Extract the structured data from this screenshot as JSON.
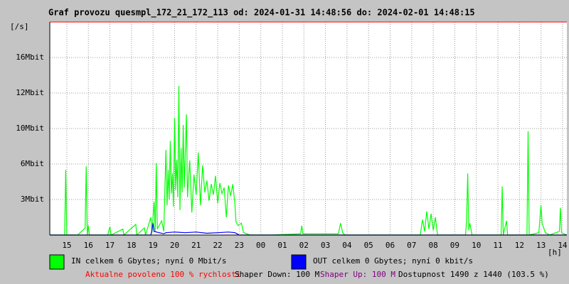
{
  "chart_data": {
    "type": "line",
    "title": "Graf provozu quesmpl_172_21_172_113 od: 2024-01-31 14:48:56 do: 2024-02-01 14:48:15",
    "ylabel": "[/s]",
    "xlabel": "[h]",
    "yscale": "equal-step",
    "ylim": [
      0,
      20
    ],
    "yticks": [
      {
        "value": 3,
        "label": "3Mbit"
      },
      {
        "value": 6,
        "label": "6Mbit"
      },
      {
        "value": 10,
        "label": "10Mbit"
      },
      {
        "value": 12,
        "label": "12Mbit"
      },
      {
        "value": 16,
        "label": "16Mbit"
      }
    ],
    "xlim": [
      14.21,
      38.2
    ],
    "xticks": [
      {
        "value": 15,
        "label": "15"
      },
      {
        "value": 16,
        "label": "16"
      },
      {
        "value": 17,
        "label": "17"
      },
      {
        "value": 18,
        "label": "18"
      },
      {
        "value": 19,
        "label": "19"
      },
      {
        "value": 20,
        "label": "20"
      },
      {
        "value": 21,
        "label": "21"
      },
      {
        "value": 22,
        "label": "22"
      },
      {
        "value": 23,
        "label": "23"
      },
      {
        "value": 24,
        "label": "00"
      },
      {
        "value": 25,
        "label": "01"
      },
      {
        "value": 26,
        "label": "02"
      },
      {
        "value": 27,
        "label": "03"
      },
      {
        "value": 28,
        "label": "04"
      },
      {
        "value": 29,
        "label": "05"
      },
      {
        "value": 30,
        "label": "06"
      },
      {
        "value": 31,
        "label": "07"
      },
      {
        "value": 32,
        "label": "08"
      },
      {
        "value": 33,
        "label": "09"
      },
      {
        "value": 34,
        "label": "10"
      },
      {
        "value": 35,
        "label": "11"
      },
      {
        "value": 36,
        "label": "12"
      },
      {
        "value": 37,
        "label": "13"
      },
      {
        "value": 38,
        "label": "14"
      }
    ],
    "grid": true,
    "series": [
      {
        "name": "IN celkem 6 Gbytes; nyní 0 Mbit/s",
        "color": "#00ff00",
        "x": [
          14.21,
          14.9,
          14.95,
          15.0,
          15.5,
          15.85,
          15.9,
          15.95,
          16.0,
          16.05,
          16.9,
          17.0,
          17.05,
          17.6,
          17.65,
          18.2,
          18.25,
          18.6,
          18.65,
          18.9,
          18.95,
          19.05,
          19.1,
          19.15,
          19.2,
          19.4,
          19.5,
          19.6,
          19.65,
          19.7,
          19.75,
          19.8,
          19.85,
          19.9,
          19.95,
          20.0,
          20.05,
          20.1,
          20.15,
          20.2,
          20.25,
          20.3,
          20.35,
          20.4,
          20.45,
          20.55,
          20.6,
          20.7,
          20.8,
          20.9,
          21.0,
          21.1,
          21.2,
          21.3,
          21.4,
          21.5,
          21.6,
          21.7,
          21.8,
          21.9,
          22.0,
          22.1,
          22.2,
          22.3,
          22.4,
          22.5,
          22.6,
          22.7,
          22.8,
          22.85,
          22.95,
          23.1,
          23.2,
          23.5,
          24.5,
          25.85,
          25.9,
          25.95,
          27.6,
          27.7,
          27.8,
          27.9,
          31.4,
          31.5,
          31.6,
          31.7,
          31.8,
          31.9,
          32.0,
          32.1,
          32.2,
          33.5,
          33.55,
          33.6,
          33.65,
          33.7,
          33.8,
          35.15,
          35.2,
          35.25,
          35.4,
          35.45,
          36.35,
          36.4,
          36.45,
          36.9,
          37.0,
          37.05,
          37.2,
          37.4,
          37.85,
          37.9,
          37.95,
          38.2
        ],
        "values": [
          0,
          0,
          5.5,
          0,
          0,
          0.6,
          5.8,
          0,
          0.8,
          0,
          0,
          0.7,
          0,
          0.5,
          0,
          0.9,
          0,
          0.6,
          0,
          1.5,
          0.2,
          2.8,
          0.3,
          6.1,
          0.5,
          1.2,
          0.3,
          7.6,
          2.5,
          5.5,
          3,
          8.6,
          3.5,
          5.2,
          2.4,
          10.6,
          3.8,
          6.5,
          3.2,
          12.8,
          2.1,
          7.8,
          3.6,
          10.2,
          4.0,
          10.8,
          3.2,
          6.4,
          1.9,
          5.1,
          3.4,
          7.3,
          2.5,
          5.9,
          3.6,
          4.6,
          2.9,
          4.3,
          3.4,
          5.0,
          2.7,
          4.4,
          3.5,
          4.0,
          1.5,
          4.2,
          3.3,
          4.3,
          2.6,
          1.1,
          0.8,
          1.0,
          0.2,
          0,
          0,
          0.1,
          0.8,
          0.1,
          0.1,
          1.0,
          0.2,
          0,
          0,
          1.3,
          0.3,
          2.0,
          0.5,
          1.8,
          0.4,
          1.5,
          0,
          0,
          1.4,
          5.2,
          0.4,
          1.0,
          0,
          0,
          4.1,
          0,
          1.2,
          0,
          0,
          9.7,
          0,
          0.2,
          2.5,
          1.0,
          0.2,
          0,
          0.3,
          2.3,
          0.2,
          0
        ]
      },
      {
        "name": "OUT celkem 0 Gbytes; nyní 0 kbit/s",
        "color": "#0000ff",
        "x": [
          14.21,
          18.9,
          18.95,
          19.0,
          19.05,
          19.5,
          19.6,
          20.0,
          20.5,
          21.0,
          21.5,
          22.0,
          22.5,
          22.8,
          23.0,
          38.2
        ],
        "values": [
          0,
          0,
          0.4,
          1.0,
          0.3,
          0.1,
          0.2,
          0.25,
          0.2,
          0.25,
          0.15,
          0.2,
          0.25,
          0.2,
          0,
          0
        ]
      }
    ],
    "notes": [
      {
        "text": "Aktualne povoleno 100 % rychlosti",
        "color": "#ff0000"
      },
      {
        "text": "Shaper Down: 100 M",
        "color": "#000000"
      },
      {
        "text": "Shaper Up: 100 M",
        "color": "#800080"
      },
      {
        "text": "Dostupnost 1490 z 1440 (103.5 %)",
        "color": "#000000"
      }
    ]
  }
}
